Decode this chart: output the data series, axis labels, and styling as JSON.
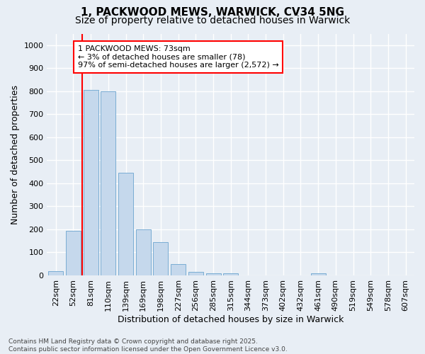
{
  "title_line1": "1, PACKWOOD MEWS, WARWICK, CV34 5NG",
  "title_line2": "Size of property relative to detached houses in Warwick",
  "xlabel": "Distribution of detached houses by size in Warwick",
  "ylabel": "Number of detached properties",
  "bar_color": "#c5d8ec",
  "bar_edge_color": "#7aadd4",
  "background_color": "#e8eef5",
  "grid_color": "#ffffff",
  "categories": [
    "22sqm",
    "52sqm",
    "81sqm",
    "110sqm",
    "139sqm",
    "169sqm",
    "198sqm",
    "227sqm",
    "256sqm",
    "285sqm",
    "315sqm",
    "344sqm",
    "373sqm",
    "402sqm",
    "432sqm",
    "461sqm",
    "490sqm",
    "519sqm",
    "549sqm",
    "578sqm",
    "607sqm"
  ],
  "values": [
    18,
    195,
    805,
    800,
    445,
    200,
    143,
    48,
    15,
    10,
    8,
    0,
    0,
    0,
    0,
    8,
    0,
    0,
    0,
    0,
    0
  ],
  "ylim": [
    0,
    1050
  ],
  "yticks": [
    0,
    100,
    200,
    300,
    400,
    500,
    600,
    700,
    800,
    900,
    1000
  ],
  "property_line_x": 1.5,
  "annotation_text": "1 PACKWOOD MEWS: 73sqm\n← 3% of detached houses are smaller (78)\n97% of semi-detached houses are larger (2,572) →",
  "annotation_box_color": "white",
  "annotation_border_color": "red",
  "red_line_color": "red",
  "footer_line1": "Contains HM Land Registry data © Crown copyright and database right 2025.",
  "footer_line2": "Contains public sector information licensed under the Open Government Licence v3.0.",
  "title_fontsize": 11,
  "subtitle_fontsize": 10,
  "tick_fontsize": 8,
  "ylabel_fontsize": 9,
  "xlabel_fontsize": 9,
  "annotation_fontsize": 8,
  "footer_fontsize": 6.5
}
